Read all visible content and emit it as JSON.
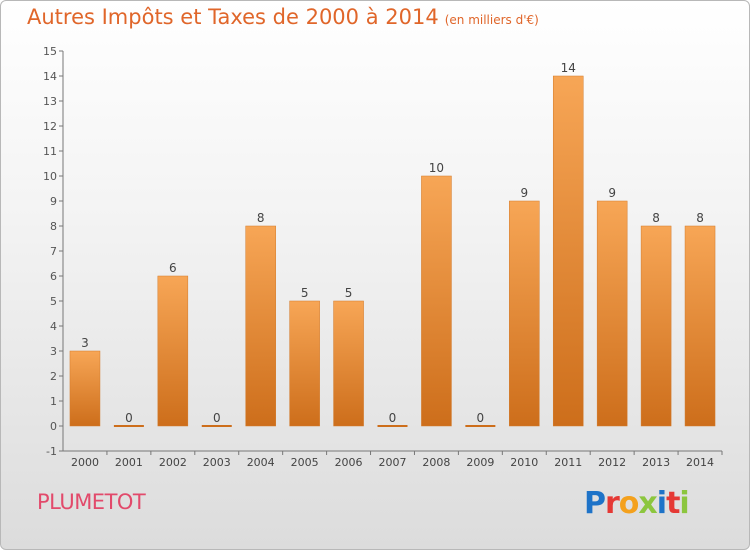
{
  "title": "Autres Impôts et Taxes de 2000 à 2014",
  "subtitle": "(en milliers d'€)",
  "commune": "PLUMETOT",
  "logo": {
    "letters": [
      "P",
      "r",
      "o",
      "x",
      "i",
      "t",
      "i"
    ],
    "colors": [
      "#1e73c8",
      "#e53935",
      "#f4a11d",
      "#8cc63e",
      "#1e73c8",
      "#e53935",
      "#8cc63e"
    ]
  },
  "colors": {
    "bar_top": "#f7a656",
    "bar_bottom": "#cd6e1b",
    "title": "#e0662a",
    "commune": "#e24a6b"
  },
  "chart_data": {
    "type": "bar",
    "categories": [
      "2000",
      "2001",
      "2002",
      "2003",
      "2004",
      "2005",
      "2006",
      "2007",
      "2008",
      "2009",
      "2010",
      "2011",
      "2012",
      "2013",
      "2014"
    ],
    "values": [
      3,
      0,
      6,
      0,
      8,
      5,
      5,
      0,
      10,
      0,
      9,
      14,
      9,
      8,
      8
    ],
    "ylim": [
      -1,
      15
    ],
    "yticks": [
      -1,
      0,
      1,
      2,
      3,
      4,
      5,
      6,
      7,
      8,
      9,
      10,
      11,
      12,
      13,
      14,
      15
    ],
    "grid": false
  }
}
